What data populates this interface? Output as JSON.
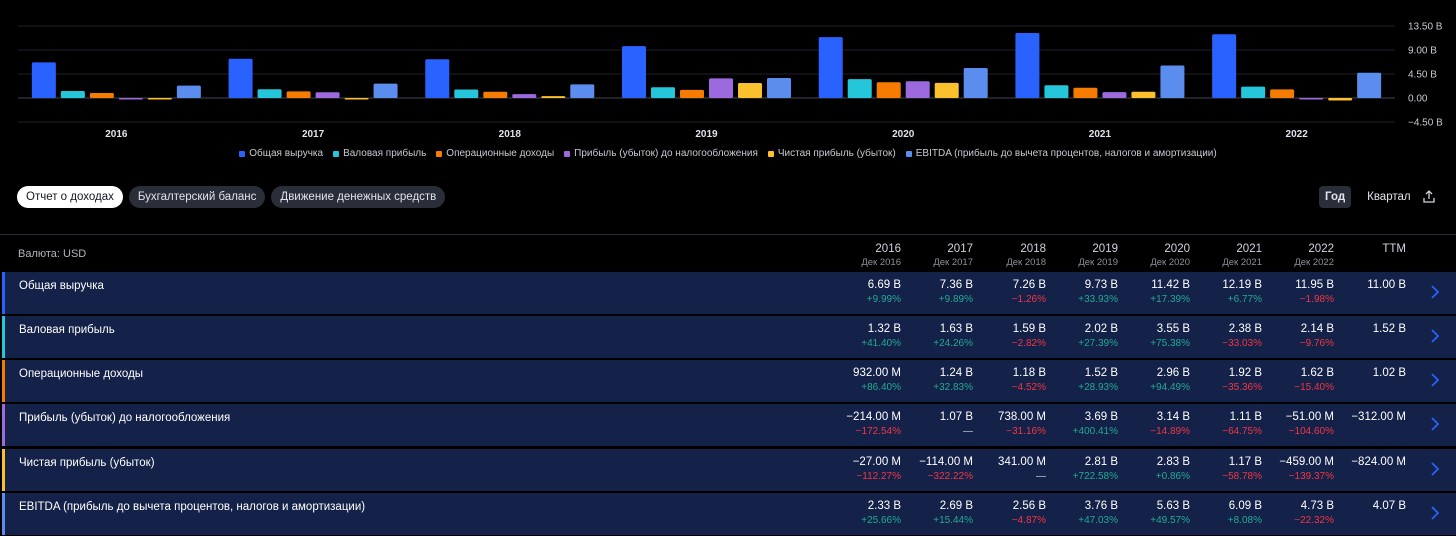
{
  "chart_data": {
    "type": "bar",
    "categories": [
      "2016",
      "2017",
      "2018",
      "2019",
      "2020",
      "2021",
      "2022"
    ],
    "series": [
      {
        "name": "Общая выручка",
        "color": "#2962ff",
        "values": [
          6.69,
          7.36,
          7.26,
          9.73,
          11.42,
          12.19,
          11.95
        ]
      },
      {
        "name": "Валовая прибыль",
        "color": "#26c6da",
        "values": [
          1.32,
          1.63,
          1.59,
          2.02,
          3.55,
          2.38,
          2.14
        ]
      },
      {
        "name": "Операционные доходы",
        "color": "#f57c00",
        "values": [
          0.932,
          1.24,
          1.18,
          1.52,
          2.96,
          1.92,
          1.62
        ]
      },
      {
        "name": "Прибыль (убыток) до налогообложения",
        "color": "#9c6ade",
        "values": [
          -0.214,
          1.07,
          0.738,
          3.69,
          3.14,
          1.11,
          -0.051
        ]
      },
      {
        "name": "Чистая прибыль (убыток)",
        "color": "#fbc02d",
        "values": [
          -0.027,
          -0.114,
          0.341,
          2.81,
          2.83,
          1.17,
          -0.459
        ]
      },
      {
        "name": "EBITDA (прибыль до вычета процентов, налогов и амортизации)",
        "color": "#5b8def",
        "values": [
          2.33,
          2.69,
          2.56,
          3.76,
          5.63,
          6.09,
          4.73
        ]
      }
    ],
    "y_ticks": [
      "13.50 B",
      "9.00 B",
      "4.50 B",
      "0.00",
      "−4.50 B"
    ],
    "y_tick_values": [
      13.5,
      9.0,
      4.5,
      0.0,
      -4.5
    ],
    "ylim": [
      -4.5,
      13.5
    ],
    "grid": true,
    "legend": "bottom"
  },
  "tabs": [
    {
      "label": "Отчет о доходах",
      "active": true
    },
    {
      "label": "Бухгалтерский баланс",
      "active": false
    },
    {
      "label": "Движение денежных средств",
      "active": false
    }
  ],
  "period": {
    "year": "Год",
    "quarter": "Квартал"
  },
  "table": {
    "currency_label": "Валюта: USD",
    "columns": [
      {
        "year": "2016",
        "date": "Дек 2016"
      },
      {
        "year": "2017",
        "date": "Дек 2017"
      },
      {
        "year": "2018",
        "date": "Дек 2018"
      },
      {
        "year": "2019",
        "date": "Дек 2019"
      },
      {
        "year": "2020",
        "date": "Дек 2020"
      },
      {
        "year": "2021",
        "date": "Дек 2021"
      },
      {
        "year": "2022",
        "date": "Дек 2022"
      },
      {
        "year": "TTM",
        "date": ""
      }
    ],
    "rows": [
      {
        "label": "Общая выручка",
        "color": "#2962ff",
        "cells": [
          {
            "v": "6.69 B",
            "c": "+9.99%",
            "t": "pos"
          },
          {
            "v": "7.36 B",
            "c": "+9.89%",
            "t": "pos"
          },
          {
            "v": "7.26 B",
            "c": "−1.26%",
            "t": "neg"
          },
          {
            "v": "9.73 B",
            "c": "+33.93%",
            "t": "pos"
          },
          {
            "v": "11.42 B",
            "c": "+17.39%",
            "t": "pos"
          },
          {
            "v": "12.19 B",
            "c": "+6.77%",
            "t": "pos"
          },
          {
            "v": "11.95 B",
            "c": "−1.98%",
            "t": "neg"
          },
          {
            "v": "11.00 B",
            "c": "",
            "t": "neu"
          }
        ]
      },
      {
        "label": "Валовая прибыль",
        "color": "#26c6da",
        "cells": [
          {
            "v": "1.32 B",
            "c": "+41.40%",
            "t": "pos"
          },
          {
            "v": "1.63 B",
            "c": "+24.26%",
            "t": "pos"
          },
          {
            "v": "1.59 B",
            "c": "−2.82%",
            "t": "neg"
          },
          {
            "v": "2.02 B",
            "c": "+27.39%",
            "t": "pos"
          },
          {
            "v": "3.55 B",
            "c": "+75.38%",
            "t": "pos"
          },
          {
            "v": "2.38 B",
            "c": "−33.03%",
            "t": "neg"
          },
          {
            "v": "2.14 B",
            "c": "−9.76%",
            "t": "neg"
          },
          {
            "v": "1.52 B",
            "c": "",
            "t": "neu"
          }
        ]
      },
      {
        "label": "Операционные доходы",
        "color": "#f57c00",
        "cells": [
          {
            "v": "932.00 M",
            "c": "+86.40%",
            "t": "pos"
          },
          {
            "v": "1.24 B",
            "c": "+32.83%",
            "t": "pos"
          },
          {
            "v": "1.18 B",
            "c": "−4.52%",
            "t": "neg"
          },
          {
            "v": "1.52 B",
            "c": "+28.93%",
            "t": "pos"
          },
          {
            "v": "2.96 B",
            "c": "+94.49%",
            "t": "pos"
          },
          {
            "v": "1.92 B",
            "c": "−35.36%",
            "t": "neg"
          },
          {
            "v": "1.62 B",
            "c": "−15.40%",
            "t": "neg"
          },
          {
            "v": "1.02 B",
            "c": "",
            "t": "neu"
          }
        ]
      },
      {
        "label": "Прибыль (убыток) до налогообложения",
        "color": "#9c6ade",
        "cells": [
          {
            "v": "−214.00 M",
            "c": "−172.54%",
            "t": "neg"
          },
          {
            "v": "1.07 B",
            "c": "—",
            "t": "neu"
          },
          {
            "v": "738.00 M",
            "c": "−31.16%",
            "t": "neg"
          },
          {
            "v": "3.69 B",
            "c": "+400.41%",
            "t": "pos"
          },
          {
            "v": "3.14 B",
            "c": "−14.89%",
            "t": "neg"
          },
          {
            "v": "1.11 B",
            "c": "−64.75%",
            "t": "neg"
          },
          {
            "v": "−51.00 M",
            "c": "−104.60%",
            "t": "neg"
          },
          {
            "v": "−312.00 M",
            "c": "",
            "t": "neu"
          }
        ]
      },
      {
        "label": "Чистая прибыль (убыток)",
        "color": "#fbc02d",
        "cells": [
          {
            "v": "−27.00 M",
            "c": "−112.27%",
            "t": "neg"
          },
          {
            "v": "−114.00 M",
            "c": "−322.22%",
            "t": "neg"
          },
          {
            "v": "341.00 M",
            "c": "—",
            "t": "neu"
          },
          {
            "v": "2.81 B",
            "c": "+722.58%",
            "t": "pos"
          },
          {
            "v": "2.83 B",
            "c": "+0.86%",
            "t": "pos"
          },
          {
            "v": "1.17 B",
            "c": "−58.78%",
            "t": "neg"
          },
          {
            "v": "−459.00 M",
            "c": "−139.37%",
            "t": "neg"
          },
          {
            "v": "−824.00 M",
            "c": "",
            "t": "neu"
          }
        ]
      },
      {
        "label": "EBITDA (прибыль до вычета процентов, налогов и амортизации)",
        "color": "#5b8def",
        "cells": [
          {
            "v": "2.33 B",
            "c": "+25.66%",
            "t": "pos"
          },
          {
            "v": "2.69 B",
            "c": "+15.44%",
            "t": "pos"
          },
          {
            "v": "2.56 B",
            "c": "−4.87%",
            "t": "neg"
          },
          {
            "v": "3.76 B",
            "c": "+47.03%",
            "t": "pos"
          },
          {
            "v": "5.63 B",
            "c": "+49.57%",
            "t": "pos"
          },
          {
            "v": "6.09 B",
            "c": "+8.08%",
            "t": "pos"
          },
          {
            "v": "4.73 B",
            "c": "−22.32%",
            "t": "neg"
          },
          {
            "v": "4.07 B",
            "c": "",
            "t": "neu"
          }
        ]
      }
    ]
  },
  "icons": {
    "share": "share-icon",
    "chevron": "chevron-right-icon"
  }
}
